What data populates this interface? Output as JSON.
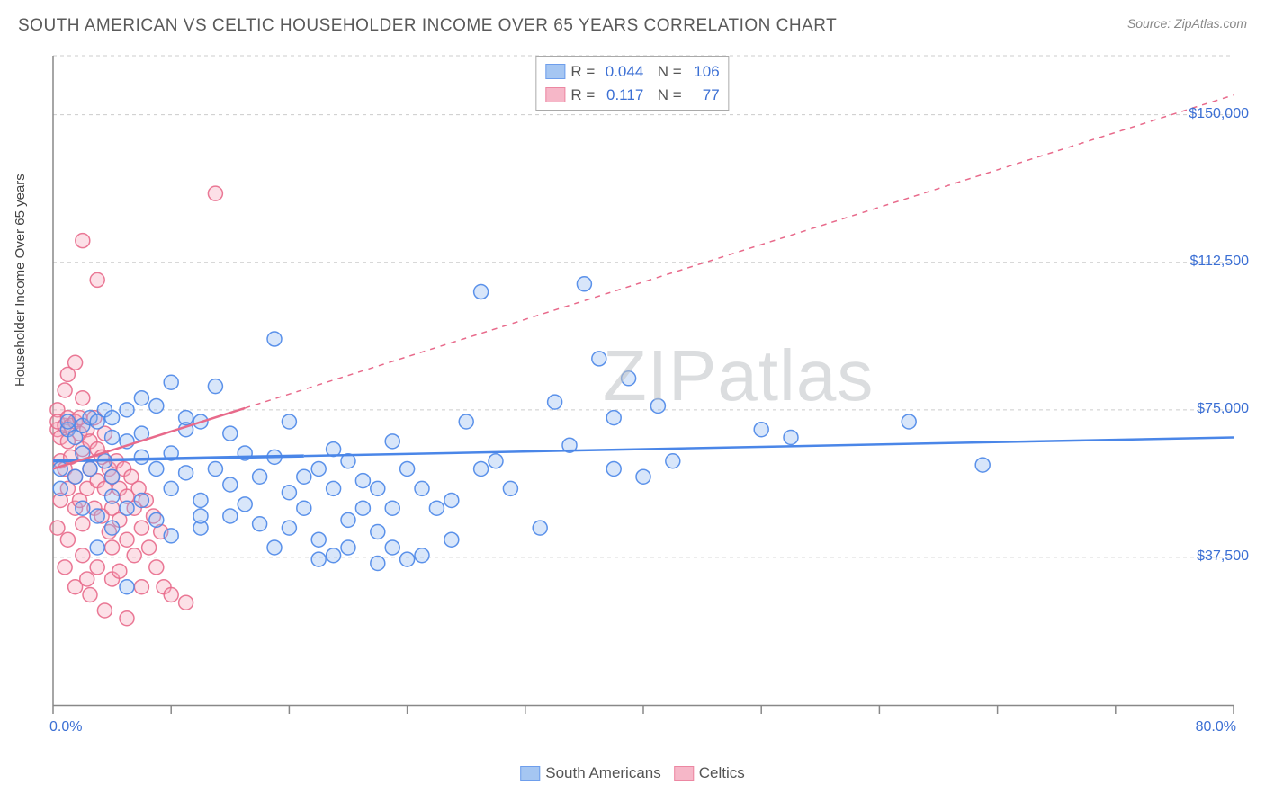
{
  "title": "SOUTH AMERICAN VS CELTIC HOUSEHOLDER INCOME OVER 65 YEARS CORRELATION CHART",
  "source": "Source: ZipAtlas.com",
  "watermark": "ZIPatlas",
  "ylabel": "Householder Income Over 65 years",
  "chart": {
    "type": "scatter",
    "xlim": [
      0,
      80
    ],
    "ylim": [
      0,
      165000
    ],
    "x_tick_labels": {
      "min": "0.0%",
      "max": "80.0%"
    },
    "x_tick_positions": [
      0,
      8,
      16,
      24,
      32,
      40,
      48,
      56,
      64,
      72,
      80
    ],
    "y_tick_labels": [
      {
        "value": 37500,
        "label": "$37,500"
      },
      {
        "value": 75000,
        "label": "$75,000"
      },
      {
        "value": 112500,
        "label": "$112,500"
      },
      {
        "value": 150000,
        "label": "$150,000"
      }
    ],
    "y_gridlines": [
      37500,
      75000,
      112500,
      150000,
      165000
    ],
    "grid_color": "#cccccc",
    "axis_color": "#888888",
    "background": "#ffffff",
    "marker_radius": 8,
    "marker_stroke_width": 1.5,
    "marker_fill_opacity": 0.35,
    "series": [
      {
        "name": "South Americans",
        "color_stroke": "#4a86e8",
        "color_fill": "#8fb8f0",
        "R": "0.044",
        "N": "106",
        "trend": {
          "x1": 0,
          "y1": 62000,
          "x2": 80,
          "y2": 68000,
          "dash": null,
          "width": 2.5,
          "extend_x": 17
        },
        "points": [
          [
            0.5,
            60000
          ],
          [
            0.5,
            55000
          ],
          [
            1,
            70000
          ],
          [
            1,
            72000
          ],
          [
            1.5,
            68000
          ],
          [
            1.5,
            58000
          ],
          [
            2,
            71000
          ],
          [
            2,
            64000
          ],
          [
            2,
            50000
          ],
          [
            2.5,
            73000
          ],
          [
            2.5,
            60000
          ],
          [
            3,
            72000
          ],
          [
            3,
            48000
          ],
          [
            3,
            40000
          ],
          [
            3.5,
            62000
          ],
          [
            3.5,
            75000
          ],
          [
            4,
            68000
          ],
          [
            4,
            58000
          ],
          [
            4,
            73000
          ],
          [
            4,
            45000
          ],
          [
            4,
            53000
          ],
          [
            5,
            67000
          ],
          [
            5,
            75000
          ],
          [
            5,
            50000
          ],
          [
            5,
            30000
          ],
          [
            6,
            69000
          ],
          [
            6,
            78000
          ],
          [
            6,
            52000
          ],
          [
            6,
            63000
          ],
          [
            7,
            47000
          ],
          [
            7,
            76000
          ],
          [
            7,
            60000
          ],
          [
            8,
            82000
          ],
          [
            8,
            55000
          ],
          [
            8,
            64000
          ],
          [
            8,
            43000
          ],
          [
            9,
            70000
          ],
          [
            9,
            73000
          ],
          [
            9,
            59000
          ],
          [
            10,
            45000
          ],
          [
            10,
            52000
          ],
          [
            10,
            48000
          ],
          [
            10,
            72000
          ],
          [
            11,
            60000
          ],
          [
            11,
            81000
          ],
          [
            12,
            48000
          ],
          [
            12,
            56000
          ],
          [
            12,
            69000
          ],
          [
            13,
            51000
          ],
          [
            13,
            64000
          ],
          [
            14,
            58000
          ],
          [
            14,
            46000
          ],
          [
            15,
            63000
          ],
          [
            15,
            93000
          ],
          [
            15,
            40000
          ],
          [
            16,
            72000
          ],
          [
            16,
            45000
          ],
          [
            16,
            54000
          ],
          [
            17,
            58000
          ],
          [
            17,
            50000
          ],
          [
            18,
            60000
          ],
          [
            18,
            42000
          ],
          [
            18,
            37000
          ],
          [
            19,
            65000
          ],
          [
            19,
            38000
          ],
          [
            19,
            55000
          ],
          [
            20,
            40000
          ],
          [
            20,
            47000
          ],
          [
            20,
            62000
          ],
          [
            21,
            57000
          ],
          [
            21,
            50000
          ],
          [
            22,
            44000
          ],
          [
            22,
            36000
          ],
          [
            22,
            55000
          ],
          [
            23,
            40000
          ],
          [
            23,
            50000
          ],
          [
            23,
            67000
          ],
          [
            24,
            37000
          ],
          [
            24,
            60000
          ],
          [
            25,
            38000
          ],
          [
            25,
            55000
          ],
          [
            26,
            50000
          ],
          [
            27,
            52000
          ],
          [
            27,
            42000
          ],
          [
            28,
            72000
          ],
          [
            29,
            60000
          ],
          [
            29,
            105000
          ],
          [
            30,
            62000
          ],
          [
            31,
            55000
          ],
          [
            33,
            45000
          ],
          [
            34,
            77000
          ],
          [
            35,
            66000
          ],
          [
            36,
            107000
          ],
          [
            37,
            88000
          ],
          [
            38,
            73000
          ],
          [
            38,
            60000
          ],
          [
            39,
            83000
          ],
          [
            40,
            58000
          ],
          [
            41,
            76000
          ],
          [
            42,
            62000
          ],
          [
            48,
            70000
          ],
          [
            50,
            68000
          ],
          [
            58,
            72000
          ],
          [
            63,
            61000
          ]
        ]
      },
      {
        "name": "Celtics",
        "color_stroke": "#e86a8b",
        "color_fill": "#f5a6bb",
        "R": "0.117",
        "N": "77",
        "trend": {
          "x1": 0,
          "y1": 60000,
          "x2": 80,
          "y2": 155000,
          "dash": "6,6",
          "width": 1.5,
          "extend_x": 13
        },
        "points": [
          [
            0.3,
            70000
          ],
          [
            0.3,
            75000
          ],
          [
            0.3,
            72000
          ],
          [
            0.3,
            45000
          ],
          [
            0.5,
            68000
          ],
          [
            0.5,
            62000
          ],
          [
            0.5,
            52000
          ],
          [
            0.8,
            80000
          ],
          [
            0.8,
            71000
          ],
          [
            0.8,
            60000
          ],
          [
            0.8,
            35000
          ],
          [
            1,
            84000
          ],
          [
            1,
            73000
          ],
          [
            1,
            67000
          ],
          [
            1,
            55000
          ],
          [
            1,
            42000
          ],
          [
            1.2,
            71000
          ],
          [
            1.2,
            63000
          ],
          [
            1.5,
            87000
          ],
          [
            1.5,
            72000
          ],
          [
            1.5,
            58000
          ],
          [
            1.5,
            50000
          ],
          [
            1.5,
            30000
          ],
          [
            1.8,
            69000
          ],
          [
            1.8,
            73000
          ],
          [
            1.8,
            52000
          ],
          [
            2,
            78000
          ],
          [
            2,
            118000
          ],
          [
            2,
            65000
          ],
          [
            2,
            46000
          ],
          [
            2,
            38000
          ],
          [
            2.3,
            70000
          ],
          [
            2.3,
            55000
          ],
          [
            2.3,
            32000
          ],
          [
            2.5,
            67000
          ],
          [
            2.5,
            60000
          ],
          [
            2.5,
            28000
          ],
          [
            2.8,
            73000
          ],
          [
            2.8,
            50000
          ],
          [
            3,
            65000
          ],
          [
            3,
            57000
          ],
          [
            3,
            35000
          ],
          [
            3,
            108000
          ],
          [
            3.3,
            63000
          ],
          [
            3.3,
            48000
          ],
          [
            3.5,
            69000
          ],
          [
            3.5,
            55000
          ],
          [
            3.5,
            24000
          ],
          [
            3.8,
            60000
          ],
          [
            3.8,
            44000
          ],
          [
            4,
            58000
          ],
          [
            4,
            50000
          ],
          [
            4,
            32000
          ],
          [
            4,
            40000
          ],
          [
            4.3,
            62000
          ],
          [
            4.5,
            55000
          ],
          [
            4.5,
            47000
          ],
          [
            4.5,
            34000
          ],
          [
            4.8,
            60000
          ],
          [
            5,
            53000
          ],
          [
            5,
            42000
          ],
          [
            5,
            22000
          ],
          [
            5.3,
            58000
          ],
          [
            5.5,
            50000
          ],
          [
            5.5,
            38000
          ],
          [
            5.8,
            55000
          ],
          [
            6,
            45000
          ],
          [
            6,
            30000
          ],
          [
            6.3,
            52000
          ],
          [
            6.5,
            40000
          ],
          [
            6.8,
            48000
          ],
          [
            7,
            35000
          ],
          [
            7.3,
            44000
          ],
          [
            7.5,
            30000
          ],
          [
            8,
            28000
          ],
          [
            9,
            26000
          ],
          [
            11,
            130000
          ]
        ]
      }
    ]
  },
  "legend": {
    "series_labels": [
      "South Americans",
      "Celtics"
    ]
  }
}
